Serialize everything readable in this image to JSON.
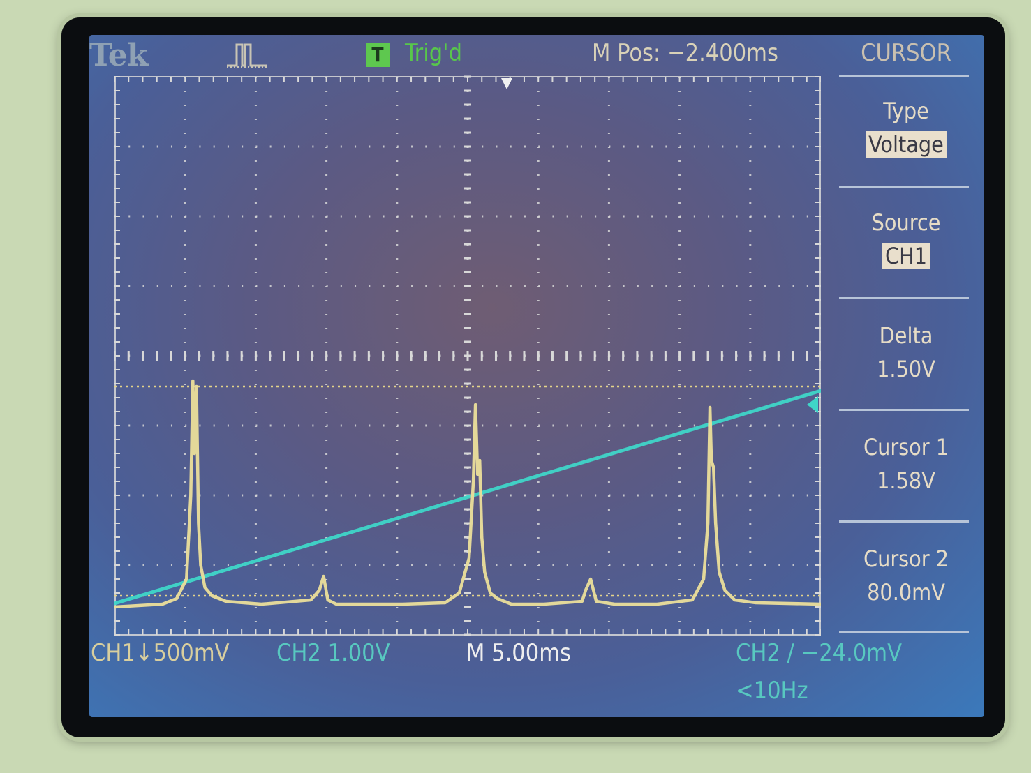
{
  "header": {
    "brand": "Tek",
    "trigger_icon": "T",
    "trigger_status": "Trig'd",
    "position": "M Pos: −2.400ms"
  },
  "menu": {
    "title": "CURSOR",
    "items": [
      {
        "label": "Type",
        "value": "Voltage",
        "highlighted": true
      },
      {
        "label": "Source",
        "value": "CH1",
        "highlighted": true
      },
      {
        "label": "Delta",
        "value": "1.50V",
        "highlighted": false
      },
      {
        "label": "Cursor 1",
        "value": "1.58V",
        "highlighted": false
      },
      {
        "label": "Cursor 2",
        "value": "80.0mV",
        "highlighted": false
      }
    ]
  },
  "footer": {
    "ch1_scale": "CH1↓500mV",
    "ch2_scale": "CH2  1.00V",
    "time_scale": "M 5.00ms",
    "trigger_info": "CH2 ∕ −24.0mV",
    "frequency": "<10Hz"
  },
  "markers": {
    "ch1": "1",
    "ch2": "2"
  },
  "colors": {
    "ch1": "#e8dc9a",
    "ch2": "#3fd6c8",
    "grid": "#d8d8d8",
    "cursor": "#e4d48a",
    "trigger": "#5ec84f"
  },
  "chart_data": {
    "type": "line",
    "title": "",
    "xlabel": "",
    "ylabel": "",
    "x_divisions": 10,
    "y_divisions": 8,
    "xlim": [
      -27.4,
      22.6
    ],
    "x_unit": "ms",
    "cursors_v": [
      1.58,
      0.08
    ],
    "series": [
      {
        "name": "CH1",
        "unit": "V",
        "x": [
          -27.4,
          -24,
          -23,
          -22.3,
          -22.0,
          -21.85,
          -21.75,
          -21.6,
          -21.45,
          -21.3,
          -21.0,
          -20.5,
          -19.5,
          -17,
          -13.5,
          -12.9,
          -12.6,
          -12.3,
          -11.7,
          -10,
          -7,
          -4,
          -3.0,
          -2.3,
          -2.0,
          -1.85,
          -1.7,
          -1.55,
          -1.4,
          -1.2,
          -0.8,
          -0.3,
          0.7,
          3,
          5.7,
          5.95,
          6.3,
          6.7,
          8,
          11,
          13.5,
          14.3,
          14.6,
          14.75,
          14.85,
          15.0,
          15.15,
          15.4,
          15.8,
          16.5,
          18,
          22.6
        ],
        "y": [
          0.0,
          0.02,
          0.06,
          0.2,
          0.8,
          1.62,
          1.1,
          1.58,
          0.6,
          0.3,
          0.14,
          0.08,
          0.04,
          0.02,
          0.05,
          0.12,
          0.22,
          0.05,
          0.02,
          0.02,
          0.02,
          0.03,
          0.1,
          0.35,
          0.9,
          1.45,
          0.95,
          1.05,
          0.5,
          0.25,
          0.1,
          0.06,
          0.02,
          0.02,
          0.04,
          0.12,
          0.2,
          0.04,
          0.02,
          0.02,
          0.05,
          0.2,
          0.6,
          1.43,
          1.05,
          1.0,
          0.6,
          0.25,
          0.12,
          0.05,
          0.03,
          0.02
        ]
      },
      {
        "name": "CH2",
        "unit": "V",
        "x": [
          -27.4,
          22.6
        ],
        "y": [
          0.0,
          3.05
        ]
      }
    ]
  }
}
